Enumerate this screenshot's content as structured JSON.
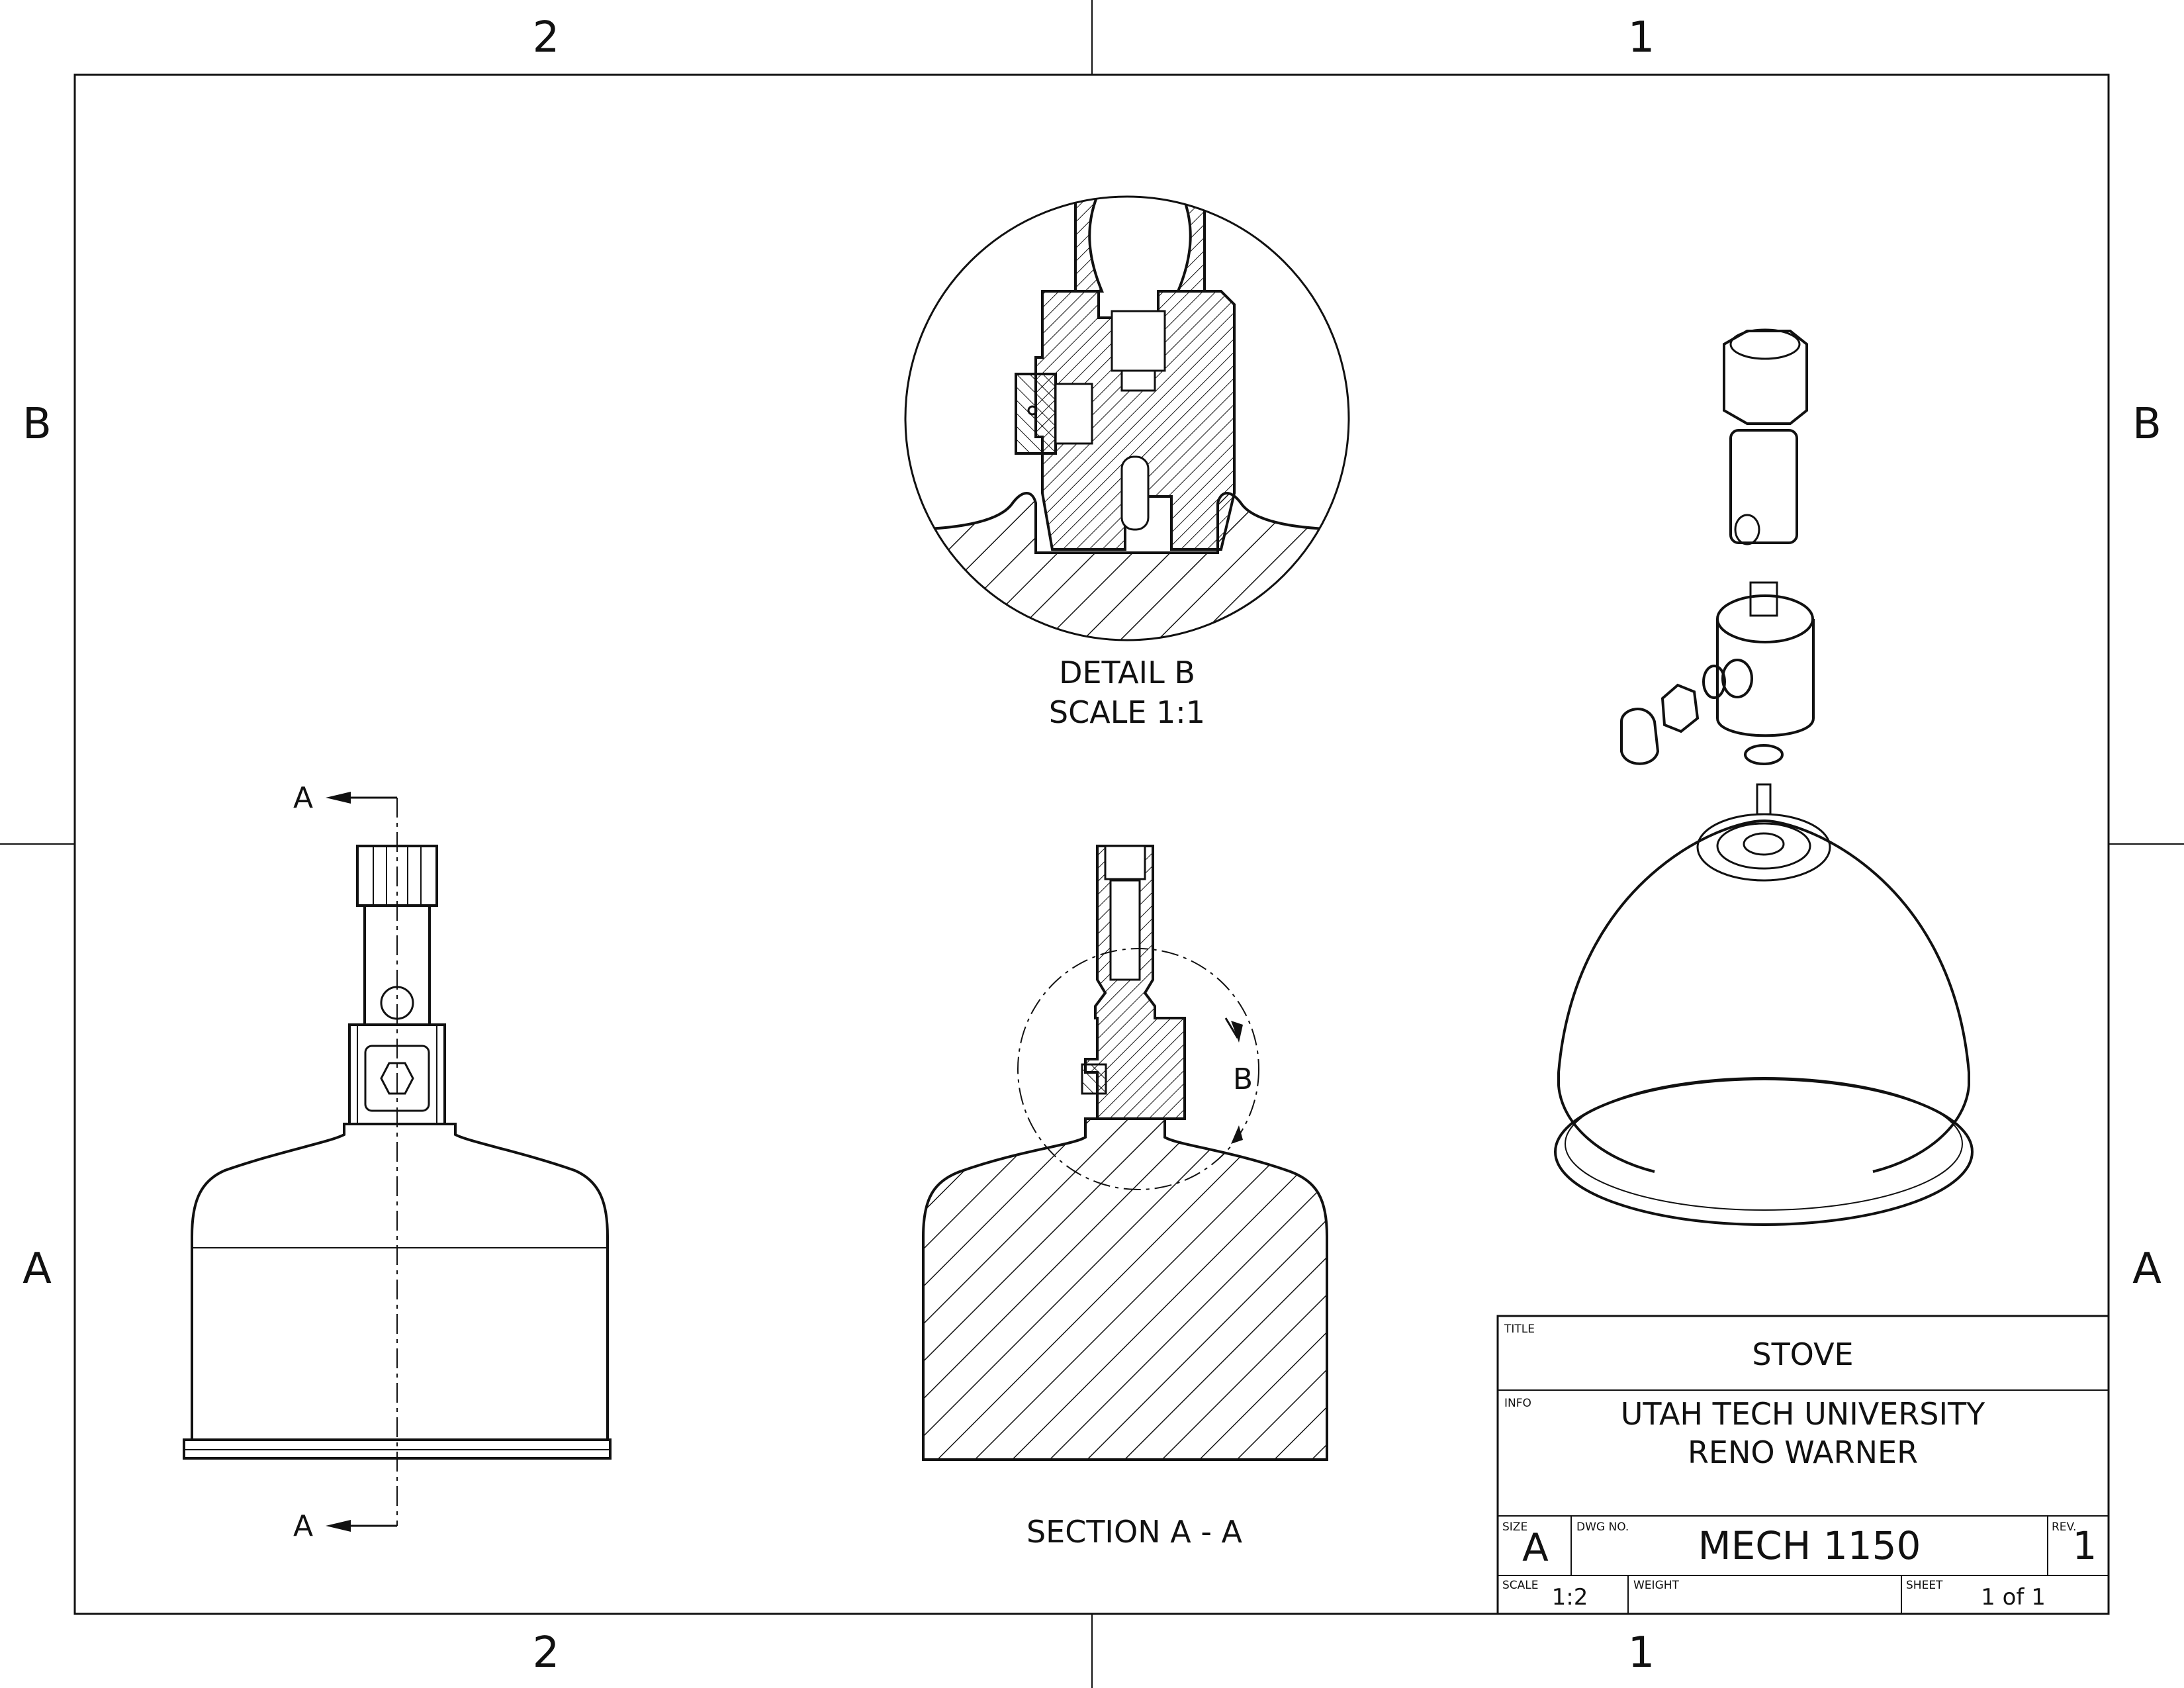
{
  "zones": {
    "top_left": "2",
    "top_right": "1",
    "bottom_left": "2",
    "bottom_right": "1",
    "left_top": "B",
    "left_bottom": "A",
    "right_top": "B",
    "right_bottom": "A"
  },
  "views": {
    "detail_title": "DETAIL B",
    "detail_scale": "SCALE 1:1",
    "section_title": "SECTION A - A",
    "section_arrow_top": "A",
    "section_arrow_bottom": "A",
    "detail_callout": "B"
  },
  "title_block": {
    "title_label": "TITLE",
    "title": "STOVE",
    "info_label": "INFO",
    "info_line1": "UTAH TECH UNIVERSITY",
    "info_line2": "RENO WARNER",
    "size_label": "SIZE",
    "size": "A",
    "dwg_label": "DWG NO.",
    "dwg_no": "MECH 1150",
    "rev_label": "REV.",
    "rev": "1",
    "scale_label": "SCALE",
    "scale": "1:2",
    "weight_label": "WEIGHT",
    "weight": "",
    "sheet_label": "SHEET",
    "sheet": "1 of 1"
  }
}
